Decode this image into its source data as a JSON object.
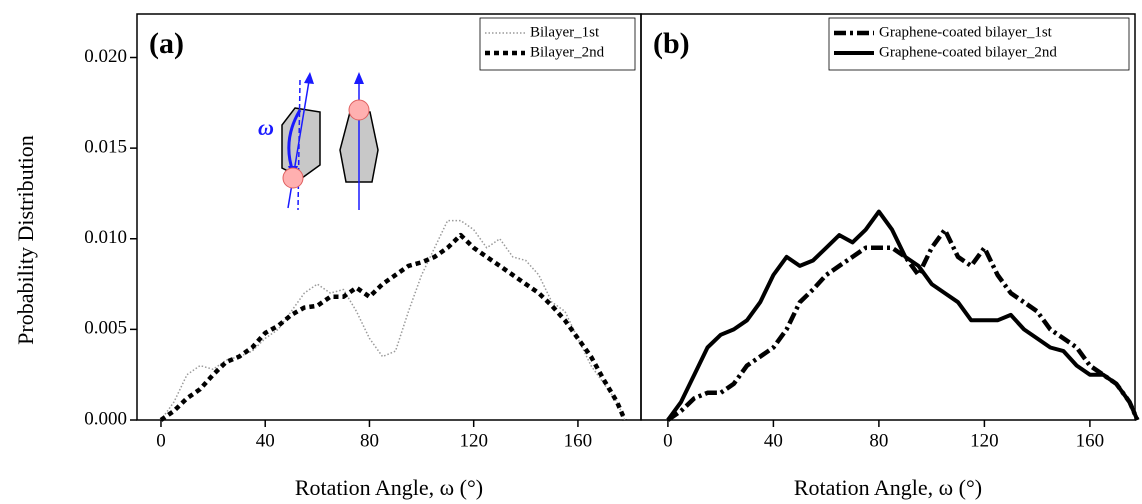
{
  "chart_data": [
    {
      "type": "line",
      "panel_label": "(a)",
      "y_label": "Probability Distribution",
      "x_label": "Rotation Angle, ω (°)",
      "inset_label": "ω",
      "x": [
        0,
        5,
        10,
        15,
        20,
        25,
        30,
        35,
        40,
        45,
        50,
        55,
        60,
        65,
        70,
        75,
        80,
        85,
        90,
        95,
        100,
        105,
        110,
        115,
        120,
        125,
        130,
        135,
        140,
        145,
        150,
        155,
        160,
        165,
        170,
        175,
        178
      ],
      "series": [
        {
          "name": "Bilayer_1st",
          "color": "#9a9a9a",
          "linestyle": "dotted",
          "values": [
            0,
            0.001,
            0.0025,
            0.003,
            0.0028,
            0.0033,
            0.0035,
            0.0038,
            0.0045,
            0.005,
            0.006,
            0.007,
            0.0075,
            0.007,
            0.0072,
            0.006,
            0.0045,
            0.0035,
            0.0038,
            0.006,
            0.008,
            0.0095,
            0.011,
            0.011,
            0.0105,
            0.0095,
            0.01,
            0.009,
            0.0088,
            0.008,
            0.0065,
            0.006,
            0.0045,
            0.003,
            0.002,
            0.001,
            0
          ]
        },
        {
          "name": "Bilayer_2nd",
          "color": "#000000",
          "linestyle": "dashed",
          "values": [
            0,
            0.0005,
            0.0012,
            0.0017,
            0.0025,
            0.0032,
            0.0035,
            0.004,
            0.0048,
            0.0052,
            0.0058,
            0.0062,
            0.0063,
            0.0068,
            0.0068,
            0.0073,
            0.0068,
            0.0075,
            0.008,
            0.0085,
            0.0087,
            0.009,
            0.0095,
            0.0102,
            0.0095,
            0.009,
            0.0085,
            0.008,
            0.0075,
            0.007,
            0.0063,
            0.0055,
            0.0045,
            0.0035,
            0.0022,
            0.001,
            0
          ]
        }
      ],
      "xlim": [
        -9.2,
        184.2
      ],
      "xticks": [
        0,
        40,
        80,
        120,
        160
      ],
      "ylim": [
        0,
        0.0224
      ],
      "yticks": [
        {
          "value": 0,
          "label": "0.000"
        },
        0.005,
        {
          "value": 0.01,
          "label": "0.010"
        },
        0.015,
        {
          "value": 0.02,
          "label": "0.020"
        }
      ],
      "legend": "upper right"
    },
    {
      "type": "line",
      "panel_label": "(b)",
      "x_label": "Rotation Angle, ω (°)",
      "x": [
        0,
        5,
        10,
        15,
        20,
        25,
        30,
        35,
        40,
        45,
        50,
        55,
        60,
        65,
        70,
        75,
        80,
        85,
        90,
        95,
        100,
        105,
        110,
        115,
        120,
        125,
        130,
        135,
        140,
        145,
        150,
        155,
        160,
        165,
        170,
        175,
        178
      ],
      "series": [
        {
          "name": "Graphene-coated bilayer_1st",
          "color": "#000000",
          "linestyle": "dashdot",
          "values": [
            0,
            0.0005,
            0.0012,
            0.0015,
            0.0015,
            0.002,
            0.003,
            0.0035,
            0.004,
            0.005,
            0.0065,
            0.0072,
            0.008,
            0.0085,
            0.009,
            0.0095,
            0.0095,
            0.0095,
            0.009,
            0.008,
            0.0095,
            0.0105,
            0.009,
            0.0085,
            0.0095,
            0.008,
            0.007,
            0.0065,
            0.006,
            0.005,
            0.0045,
            0.004,
            0.003,
            0.0025,
            0.002,
            0.001,
            0
          ]
        },
        {
          "name": "Graphene-coated bilayer_2nd",
          "color": "#000000",
          "linestyle": "solid",
          "values": [
            0,
            0.001,
            0.0025,
            0.004,
            0.0047,
            0.005,
            0.0055,
            0.0065,
            0.008,
            0.009,
            0.0085,
            0.0088,
            0.0095,
            0.0102,
            0.0098,
            0.0105,
            0.0115,
            0.0105,
            0.009,
            0.0085,
            0.0075,
            0.007,
            0.0065,
            0.0055,
            0.0055,
            0.0055,
            0.0058,
            0.005,
            0.0045,
            0.004,
            0.0038,
            0.003,
            0.0025,
            0.0025,
            0.002,
            0.001,
            0
          ]
        }
      ],
      "xlim": [
        -10.2,
        177.1
      ],
      "xticks": [
        0,
        40,
        80,
        120,
        160
      ],
      "ylim": [
        0,
        0.0224
      ],
      "legend": "upper right"
    }
  ]
}
